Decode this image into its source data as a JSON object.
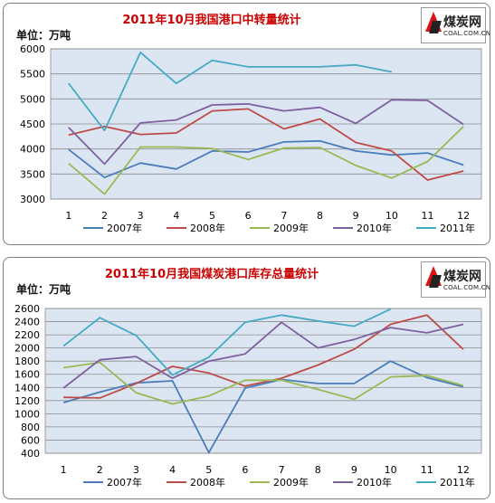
{
  "chart_data": [
    {
      "type": "line",
      "title": "2011年10月我国港口中转量统计",
      "ylabel": "单位：万吨",
      "categories": [
        "1",
        "2",
        "3",
        "4",
        "5",
        "6",
        "7",
        "8",
        "9",
        "10",
        "11",
        "12"
      ],
      "ylim": [
        3000,
        6000
      ],
      "yticks": [
        3000,
        3500,
        4000,
        4500,
        5000,
        5500,
        6000
      ],
      "grid": true,
      "legend_position": "bottom",
      "series": [
        {
          "name": "2007年",
          "color": "#4a7ebb",
          "values": [
            3990,
            3430,
            3720,
            3600,
            3960,
            3940,
            4140,
            4160,
            3960,
            3880,
            3920,
            3680
          ]
        },
        {
          "name": "2008年",
          "color": "#be4b48",
          "values": [
            4280,
            4450,
            4290,
            4320,
            4760,
            4800,
            4400,
            4600,
            4130,
            3960,
            3380,
            3560
          ]
        },
        {
          "name": "2009年",
          "color": "#98b954",
          "values": [
            3710,
            3100,
            4040,
            4040,
            4010,
            3790,
            4020,
            4030,
            3670,
            3420,
            3750,
            4450
          ]
        },
        {
          "name": "2010年",
          "color": "#7d60a0",
          "values": [
            4430,
            3700,
            4520,
            4580,
            4880,
            4900,
            4760,
            4830,
            4510,
            4980,
            4970,
            4490
          ]
        },
        {
          "name": "2011年",
          "color": "#46aac5",
          "values": [
            5310,
            4370,
            5930,
            5310,
            5770,
            5640,
            5640,
            5640,
            5680,
            5540,
            null,
            null
          ]
        }
      ]
    },
    {
      "type": "line",
      "title": "2011年10月我国煤炭港口库存总量统计",
      "ylabel": "单位：万吨",
      "categories": [
        "1",
        "2",
        "3",
        "4",
        "5",
        "6",
        "7",
        "8",
        "9",
        "10",
        "11",
        "12"
      ],
      "ylim": [
        400,
        2600
      ],
      "yticks": [
        400,
        600,
        800,
        1000,
        1200,
        1400,
        1600,
        1800,
        2000,
        2200,
        2400,
        2600
      ],
      "grid": true,
      "legend_position": "bottom",
      "series": [
        {
          "name": "2007年",
          "color": "#4a7ebb",
          "values": [
            1170,
            1330,
            1470,
            1500,
            410,
            1390,
            1520,
            1460,
            1460,
            1800,
            1550,
            1410
          ]
        },
        {
          "name": "2008年",
          "color": "#be4b48",
          "values": [
            1250,
            1240,
            1460,
            1720,
            1620,
            1420,
            1540,
            1740,
            1980,
            2360,
            2500,
            1980
          ]
        },
        {
          "name": "2009年",
          "color": "#98b954",
          "values": [
            1700,
            1780,
            1320,
            1150,
            1270,
            1510,
            1510,
            1370,
            1220,
            1560,
            1580,
            1430
          ]
        },
        {
          "name": "2010年",
          "color": "#7d60a0",
          "values": [
            1390,
            1820,
            1870,
            1540,
            1800,
            1910,
            2390,
            2000,
            2130,
            2310,
            2230,
            2360
          ]
        },
        {
          "name": "2011年",
          "color": "#46aac5",
          "values": [
            2030,
            2460,
            2190,
            1590,
            1860,
            2390,
            2500,
            2410,
            2330,
            2590,
            null,
            null
          ]
        }
      ]
    }
  ],
  "logo": {
    "brand": "煤炭网",
    "site": "COAL.COM.CN"
  }
}
